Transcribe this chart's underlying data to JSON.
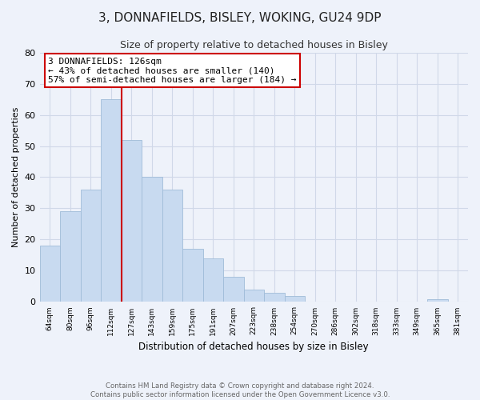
{
  "title": "3, DONNAFIELDS, BISLEY, WOKING, GU24 9DP",
  "subtitle": "Size of property relative to detached houses in Bisley",
  "xlabel": "Distribution of detached houses by size in Bisley",
  "ylabel": "Number of detached properties",
  "bar_labels": [
    "64sqm",
    "80sqm",
    "96sqm",
    "112sqm",
    "127sqm",
    "143sqm",
    "159sqm",
    "175sqm",
    "191sqm",
    "207sqm",
    "223sqm",
    "238sqm",
    "254sqm",
    "270sqm",
    "286sqm",
    "302sqm",
    "318sqm",
    "333sqm",
    "349sqm",
    "365sqm",
    "381sqm"
  ],
  "bar_values": [
    18,
    29,
    36,
    65,
    52,
    40,
    36,
    17,
    14,
    8,
    4,
    3,
    2,
    0,
    0,
    0,
    0,
    0,
    0,
    1,
    0
  ],
  "bar_color": "#c8daf0",
  "bar_edge_color": "#a0bcd8",
  "marker_label": "3 DONNAFIELDS: 126sqm",
  "annotation_line1": "← 43% of detached houses are smaller (140)",
  "annotation_line2": "57% of semi-detached houses are larger (184) →",
  "annotation_box_color": "#ffffff",
  "annotation_box_edge": "#cc0000",
  "marker_line_color": "#cc0000",
  "ylim": [
    0,
    80
  ],
  "yticks": [
    0,
    10,
    20,
    30,
    40,
    50,
    60,
    70,
    80
  ],
  "grid_color": "#d0d8e8",
  "bg_color": "#eef2fa",
  "footer_line1": "Contains HM Land Registry data © Crown copyright and database right 2024.",
  "footer_line2": "Contains public sector information licensed under the Open Government Licence v3.0."
}
